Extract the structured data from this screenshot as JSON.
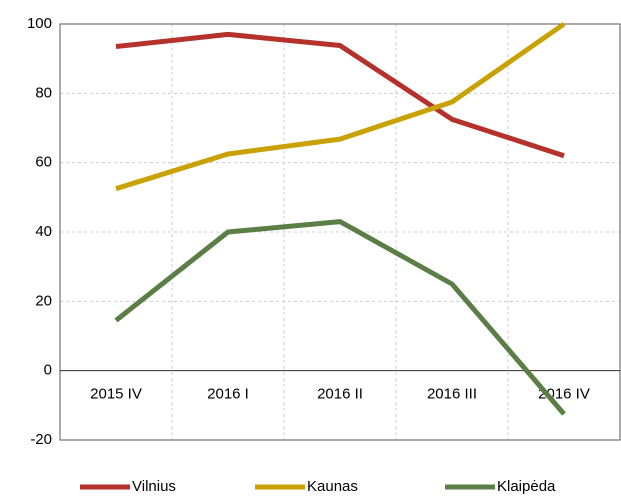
{
  "chart_data": {
    "type": "line",
    "categories": [
      "2015 IV",
      "2016 I",
      "2016 II",
      "2016 III",
      "2016 IV"
    ],
    "series": [
      {
        "name": "Vilnius",
        "color": "#b5312b",
        "values": [
          93.5,
          97,
          93.8,
          72.5,
          62
        ]
      },
      {
        "name": "Kaunas",
        "color": "#c9a100",
        "values": [
          52.5,
          62.5,
          66.8,
          77.5,
          100
        ]
      },
      {
        "name": "Klaipėda",
        "color": "#5b7e46",
        "values": [
          14.5,
          40,
          43,
          25,
          -12.5
        ]
      }
    ],
    "ylim": [
      -20,
      100
    ],
    "yticks": [
      -20,
      0,
      20,
      40,
      60,
      80,
      100
    ],
    "grid": true,
    "legend": "bottom"
  }
}
